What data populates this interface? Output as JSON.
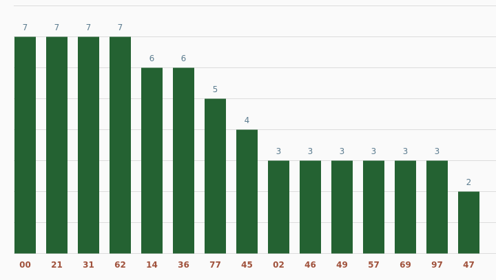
{
  "chart_data": {
    "type": "bar",
    "categories": [
      "00",
      "21",
      "31",
      "62",
      "14",
      "36",
      "77",
      "45",
      "02",
      "46",
      "49",
      "57",
      "69",
      "97",
      "47"
    ],
    "values": [
      7,
      7,
      7,
      7,
      6,
      6,
      5,
      4,
      3,
      3,
      3,
      3,
      3,
      3,
      2
    ],
    "color": "#246232",
    "ylim": [
      0,
      8
    ],
    "yticks": [
      0,
      1,
      2,
      3,
      4,
      5,
      6,
      7,
      8
    ],
    "grid": true
  }
}
